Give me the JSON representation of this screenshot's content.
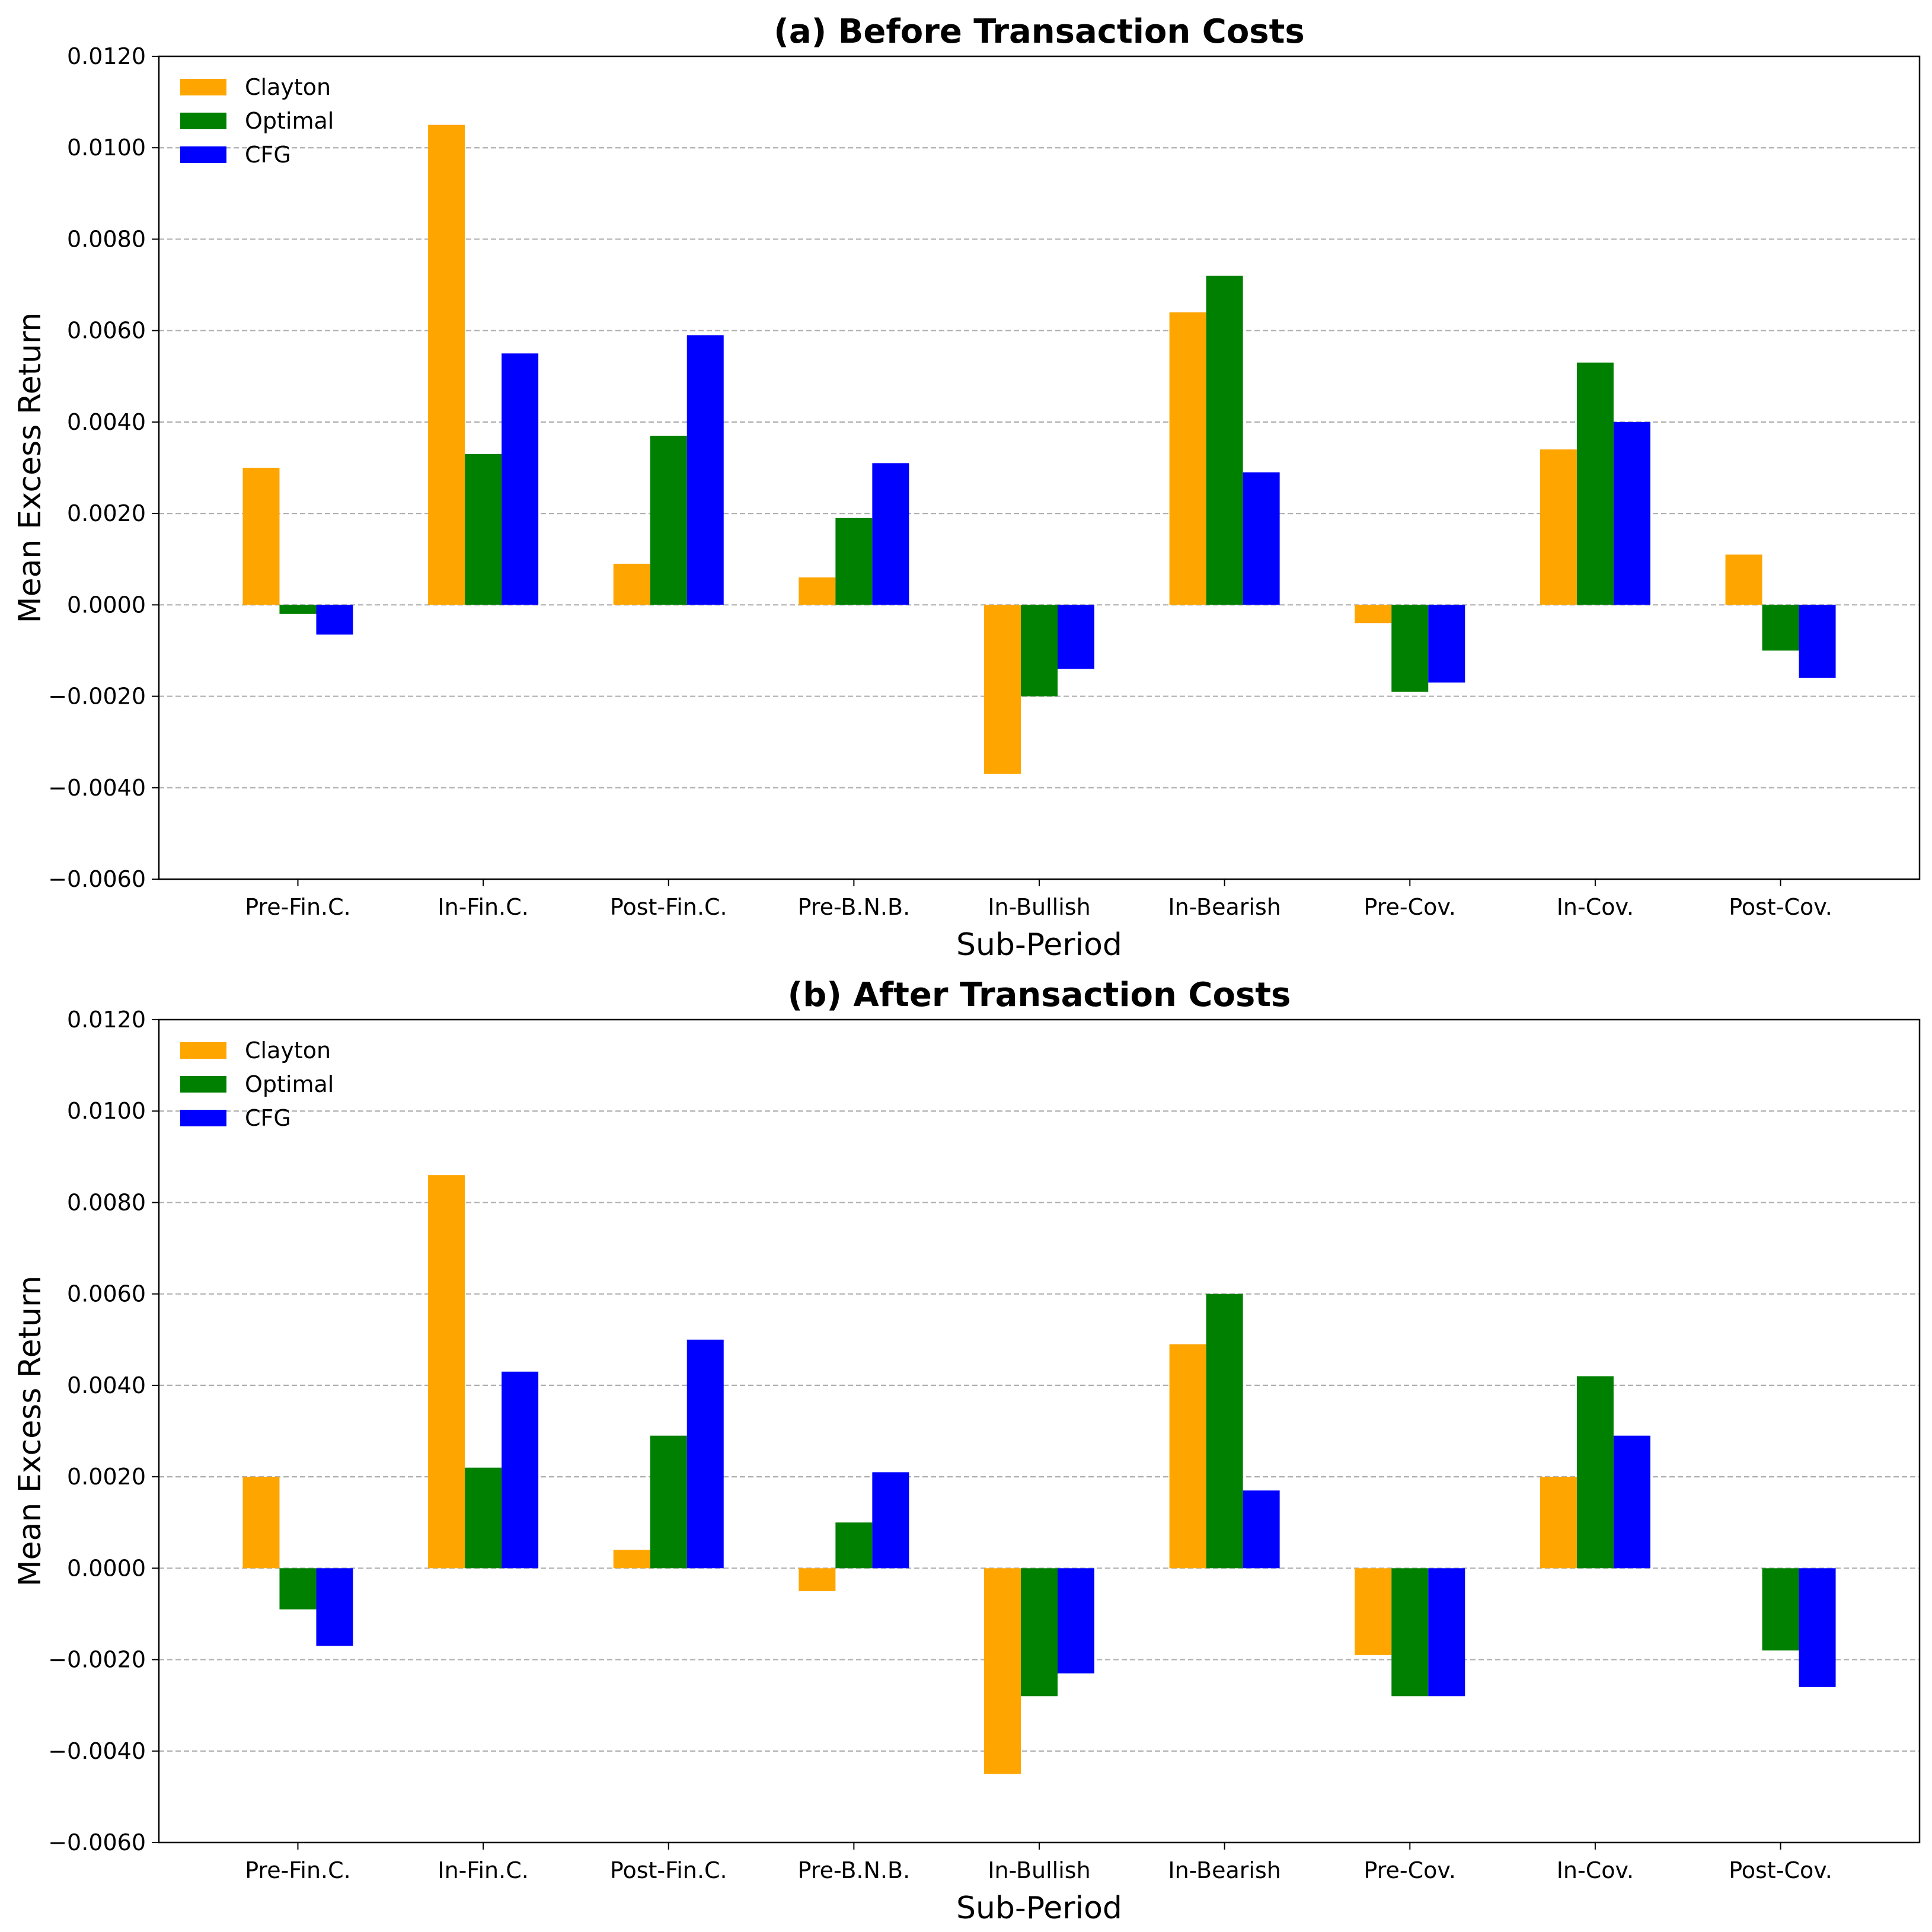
{
  "chart_data": [
    {
      "type": "bar",
      "title": "(a) Before Transaction Costs",
      "xlabel": "Sub-Period",
      "ylabel": "Mean Excess Return",
      "ylim": [
        -0.006,
        0.012
      ],
      "yticks": [
        "0.0120",
        "0.0100",
        "0.0080",
        "0.0060",
        "0.0040",
        "0.0020",
        "0.0000",
        "−0.0020",
        "−0.0040",
        "−0.0060"
      ],
      "grid": "horizontal dashed",
      "legend_position": "top-left",
      "categories": [
        "Pre-Fin.C.",
        "In-Fin.C.",
        "Post-Fin.C.",
        "Pre-B.N.B.",
        "In-Bullish",
        "In-Bearish",
        "Pre-Cov.",
        "In-Cov.",
        "Post-Cov."
      ],
      "series": [
        {
          "name": "Clayton",
          "color": "#FFA500",
          "values": [
            0.003,
            0.0105,
            0.0009,
            0.0006,
            -0.0037,
            0.0064,
            -0.0004,
            0.0034,
            0.0011
          ]
        },
        {
          "name": "Optimal",
          "color": "#008000",
          "values": [
            -0.0002,
            0.0033,
            0.0037,
            0.0019,
            -0.002,
            0.0072,
            -0.0019,
            0.0053,
            -0.001
          ]
        },
        {
          "name": "CFG",
          "color": "#0000FF",
          "values": [
            -0.00065,
            0.0055,
            0.0059,
            0.0031,
            -0.0014,
            0.0029,
            -0.0017,
            0.004,
            -0.0016
          ]
        }
      ]
    },
    {
      "type": "bar",
      "title": "(b) After Transaction Costs",
      "xlabel": "Sub-Period",
      "ylabel": "Mean Excess Return",
      "ylim": [
        -0.006,
        0.012
      ],
      "yticks": [
        "0.0120",
        "0.0100",
        "0.0080",
        "0.0060",
        "0.0040",
        "0.0020",
        "0.0000",
        "−0.0020",
        "−0.0040",
        "−0.0060"
      ],
      "grid": "horizontal dashed",
      "legend_position": "top-left",
      "categories": [
        "Pre-Fin.C.",
        "In-Fin.C.",
        "Post-Fin.C.",
        "Pre-B.N.B.",
        "In-Bullish",
        "In-Bearish",
        "Pre-Cov.",
        "In-Cov.",
        "Post-Cov."
      ],
      "series": [
        {
          "name": "Clayton",
          "color": "#FFA500",
          "values": [
            0.002,
            0.0086,
            0.0004,
            -0.0005,
            -0.0045,
            0.0049,
            -0.0019,
            0.002,
            0.0
          ]
        },
        {
          "name": "Optimal",
          "color": "#008000",
          "values": [
            -0.0009,
            0.0022,
            0.0029,
            0.001,
            -0.0028,
            0.006,
            -0.0028,
            0.0042,
            -0.0018
          ]
        },
        {
          "name": "CFG",
          "color": "#0000FF",
          "values": [
            -0.0017,
            0.0043,
            0.005,
            0.0021,
            -0.0023,
            0.0017,
            -0.0028,
            0.0029,
            -0.0026
          ]
        }
      ]
    }
  ]
}
